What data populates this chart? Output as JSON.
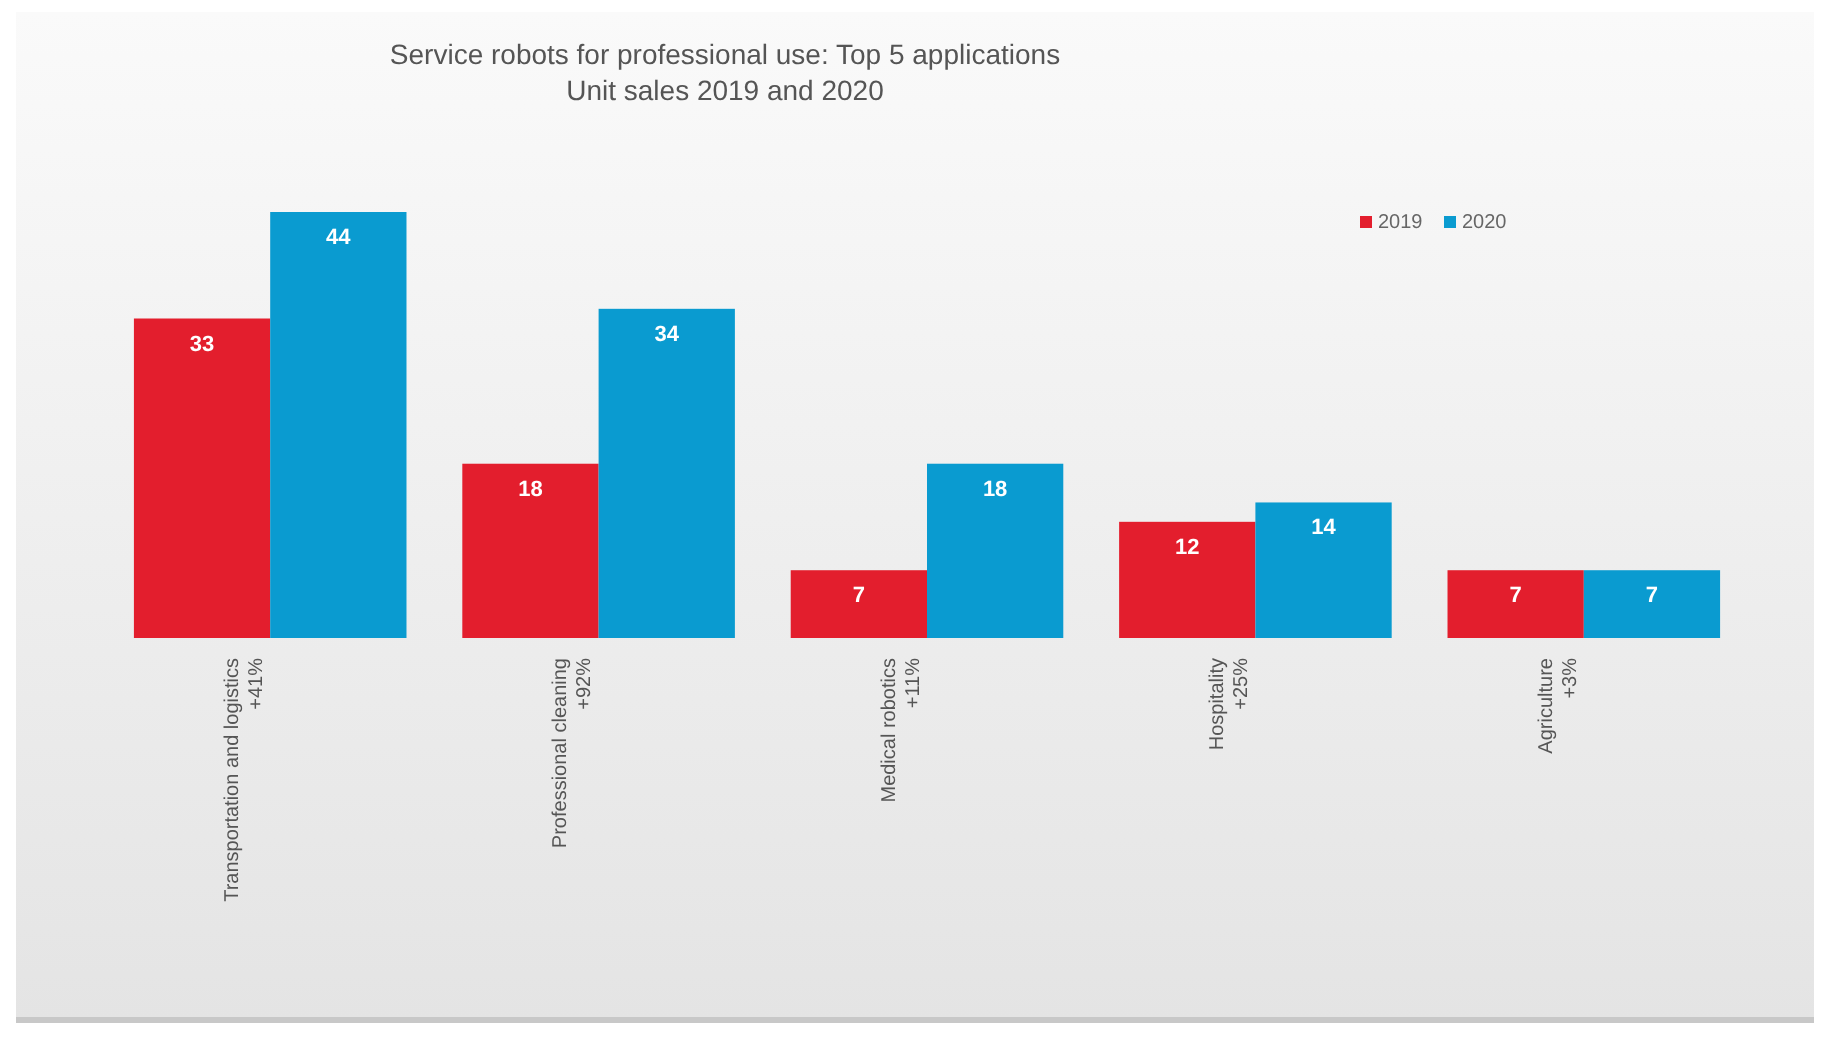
{
  "chart_data": {
    "type": "bar",
    "title": "Service robots for professional use: Top 5 applications",
    "subtitle": "Unit sales 2019 and 2020",
    "categories": [
      "Transportation and logistics\n+41%",
      "Professional cleaning\n+92%",
      "Medical robotics\n+11%",
      "Hospitality\n+25%",
      "Agriculture\n+3%"
    ],
    "series": [
      {
        "name": "2019",
        "color": "#e31e2d",
        "values": [
          33,
          18,
          7,
          12,
          7
        ]
      },
      {
        "name": "2020",
        "color": "#0a9bd0",
        "values": [
          44,
          34,
          18,
          14,
          7
        ]
      }
    ],
    "data_labels": true,
    "legend": "top right"
  }
}
